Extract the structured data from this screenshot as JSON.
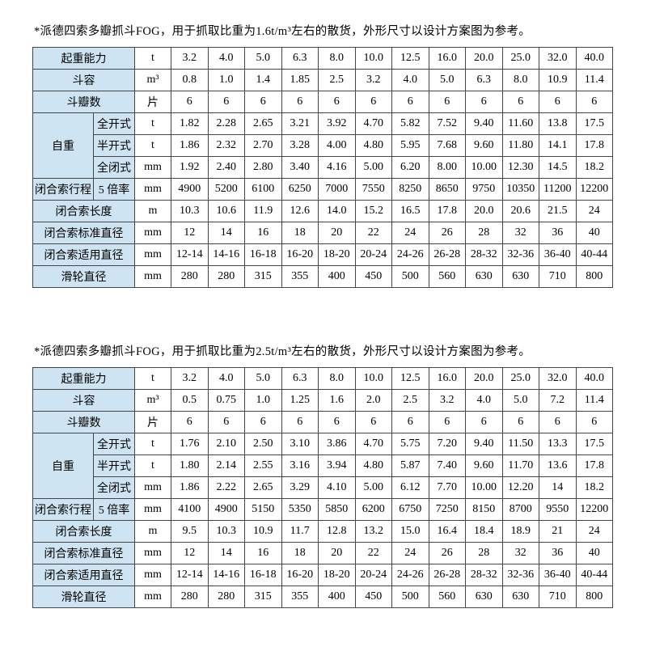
{
  "document": {
    "colors": {
      "label_cell_bg": "#cfe4f2",
      "table_border": "#454545",
      "text": "#000000",
      "page_bg": "#ffffff"
    }
  },
  "sections": [
    {
      "note": "*派德四索多瓣抓斗FOG，用于抓取比重为1.6t/m³左右的散货，外形尺寸以设计方案图为参考。",
      "table": {
        "rows": [
          {
            "label": "起重能力",
            "label_colspan": 2,
            "unit": "t",
            "values": [
              "3.2",
              "4.0",
              "5.0",
              "6.3",
              "8.0",
              "10.0",
              "12.5",
              "16.0",
              "20.0",
              "25.0",
              "32.0",
              "40.0"
            ]
          },
          {
            "label": "斗容",
            "label_colspan": 2,
            "unit": "m³",
            "values": [
              "0.8",
              "1.0",
              "1.4",
              "1.85",
              "2.5",
              "3.2",
              "4.0",
              "5.0",
              "6.3",
              "8.0",
              "10.9",
              "11.4"
            ]
          },
          {
            "label": "斗瓣数",
            "label_colspan": 2,
            "unit": "片",
            "values": [
              "6",
              "6",
              "6",
              "6",
              "6",
              "6",
              "6",
              "6",
              "6",
              "6",
              "6",
              "6"
            ]
          },
          {
            "group": "自重",
            "group_rowspan": 3,
            "sublabel": "全开式",
            "unit": "t",
            "values": [
              "1.82",
              "2.28",
              "2.65",
              "3.21",
              "3.92",
              "4.70",
              "5.82",
              "7.52",
              "9.40",
              "11.60",
              "13.8",
              "17.5"
            ]
          },
          {
            "sublabel": "半开式",
            "unit": "t",
            "values": [
              "1.86",
              "2.32",
              "2.70",
              "3.28",
              "4.00",
              "4.80",
              "5.95",
              "7.68",
              "9.60",
              "11.80",
              "14.1",
              "17.8"
            ]
          },
          {
            "sublabel": "全闭式",
            "unit": "mm",
            "values": [
              "1.92",
              "2.40",
              "2.80",
              "3.40",
              "4.16",
              "5.00",
              "6.20",
              "8.00",
              "10.00",
              "12.30",
              "14.5",
              "18.2"
            ]
          },
          {
            "label": "闭合索行程",
            "label_colspan": 1,
            "sublabel": "5 倍率",
            "unit": "mm",
            "values": [
              "4900",
              "5200",
              "6100",
              "6250",
              "7000",
              "7550",
              "8250",
              "8650",
              "9750",
              "10350",
              "11200",
              "12200"
            ]
          },
          {
            "label": "闭合索长度",
            "label_colspan": 2,
            "unit": "m",
            "values": [
              "10.3",
              "10.6",
              "11.9",
              "12.6",
              "14.0",
              "15.2",
              "16.5",
              "17.8",
              "20.0",
              "20.6",
              "21.5",
              "24"
            ]
          },
          {
            "label": "闭合索标准直径",
            "label_colspan": 2,
            "unit": "mm",
            "values": [
              "12",
              "14",
              "16",
              "18",
              "20",
              "22",
              "24",
              "26",
              "28",
              "32",
              "36",
              "40"
            ]
          },
          {
            "label": "闭合索适用直径",
            "label_colspan": 2,
            "unit": "mm",
            "values": [
              "12-14",
              "14-16",
              "16-18",
              "16-20",
              "18-20",
              "20-24",
              "24-26",
              "26-28",
              "28-32",
              "32-36",
              "36-40",
              "40-44"
            ]
          },
          {
            "label": "滑轮直径",
            "label_colspan": 2,
            "unit": "mm",
            "values": [
              "280",
              "280",
              "315",
              "355",
              "400",
              "450",
              "500",
              "560",
              "630",
              "630",
              "710",
              "800"
            ]
          }
        ]
      }
    },
    {
      "note": "*派德四索多瓣抓斗FOG，用于抓取比重为2.5t/m³左右的散货，外形尺寸以设计方案图为参考。",
      "table": {
        "rows": [
          {
            "label": "起重能力",
            "label_colspan": 2,
            "unit": "t",
            "values": [
              "3.2",
              "4.0",
              "5.0",
              "6.3",
              "8.0",
              "10.0",
              "12.5",
              "16.0",
              "20.0",
              "25.0",
              "32.0",
              "40.0"
            ]
          },
          {
            "label": "斗容",
            "label_colspan": 2,
            "unit": "m³",
            "values": [
              "0.5",
              "0.75",
              "1.0",
              "1.25",
              "1.6",
              "2.0",
              "2.5",
              "3.2",
              "4.0",
              "5.0",
              "7.2",
              "11.4"
            ]
          },
          {
            "label": "斗瓣数",
            "label_colspan": 2,
            "unit": "片",
            "values": [
              "6",
              "6",
              "6",
              "6",
              "6",
              "6",
              "6",
              "6",
              "6",
              "6",
              "6",
              "6"
            ]
          },
          {
            "group": "自重",
            "group_rowspan": 3,
            "sublabel": "全开式",
            "unit": "t",
            "values": [
              "1.76",
              "2.10",
              "2.50",
              "3.10",
              "3.86",
              "4.70",
              "5.75",
              "7.20",
              "9.40",
              "11.50",
              "13.3",
              "17.5"
            ]
          },
          {
            "sublabel": "半开式",
            "unit": "t",
            "values": [
              "1.80",
              "2.14",
              "2.55",
              "3.16",
              "3.94",
              "4.80",
              "5.87",
              "7.40",
              "9.60",
              "11.70",
              "13.6",
              "17.8"
            ]
          },
          {
            "sublabel": "全闭式",
            "unit": "mm",
            "values": [
              "1.86",
              "2.22",
              "2.65",
              "3.29",
              "4.10",
              "5.00",
              "6.12",
              "7.70",
              "10.00",
              "12.20",
              "14",
              "18.2"
            ]
          },
          {
            "label": "闭合索行程",
            "label_colspan": 1,
            "sublabel": "5 倍率",
            "unit": "mm",
            "values": [
              "4100",
              "4900",
              "5150",
              "5350",
              "5850",
              "6200",
              "6750",
              "7250",
              "8150",
              "8700",
              "9550",
              "12200"
            ]
          },
          {
            "label": "闭合索长度",
            "label_colspan": 2,
            "unit": "m",
            "values": [
              "9.5",
              "10.3",
              "10.9",
              "11.7",
              "12.8",
              "13.2",
              "15.0",
              "16.4",
              "18.4",
              "18.9",
              "21",
              "24"
            ]
          },
          {
            "label": "闭合索标准直径",
            "label_colspan": 2,
            "unit": "mm",
            "values": [
              "12",
              "14",
              "16",
              "18",
              "20",
              "22",
              "24",
              "26",
              "28",
              "32",
              "36",
              "40"
            ]
          },
          {
            "label": "闭合索适用直径",
            "label_colspan": 2,
            "unit": "mm",
            "values": [
              "12-14",
              "14-16",
              "16-18",
              "16-20",
              "18-20",
              "20-24",
              "24-26",
              "26-28",
              "28-32",
              "32-36",
              "36-40",
              "40-44"
            ]
          },
          {
            "label": "滑轮直径",
            "label_colspan": 2,
            "unit": "mm",
            "values": [
              "280",
              "280",
              "315",
              "355",
              "400",
              "450",
              "500",
              "560",
              "630",
              "630",
              "710",
              "800"
            ]
          }
        ]
      }
    }
  ]
}
